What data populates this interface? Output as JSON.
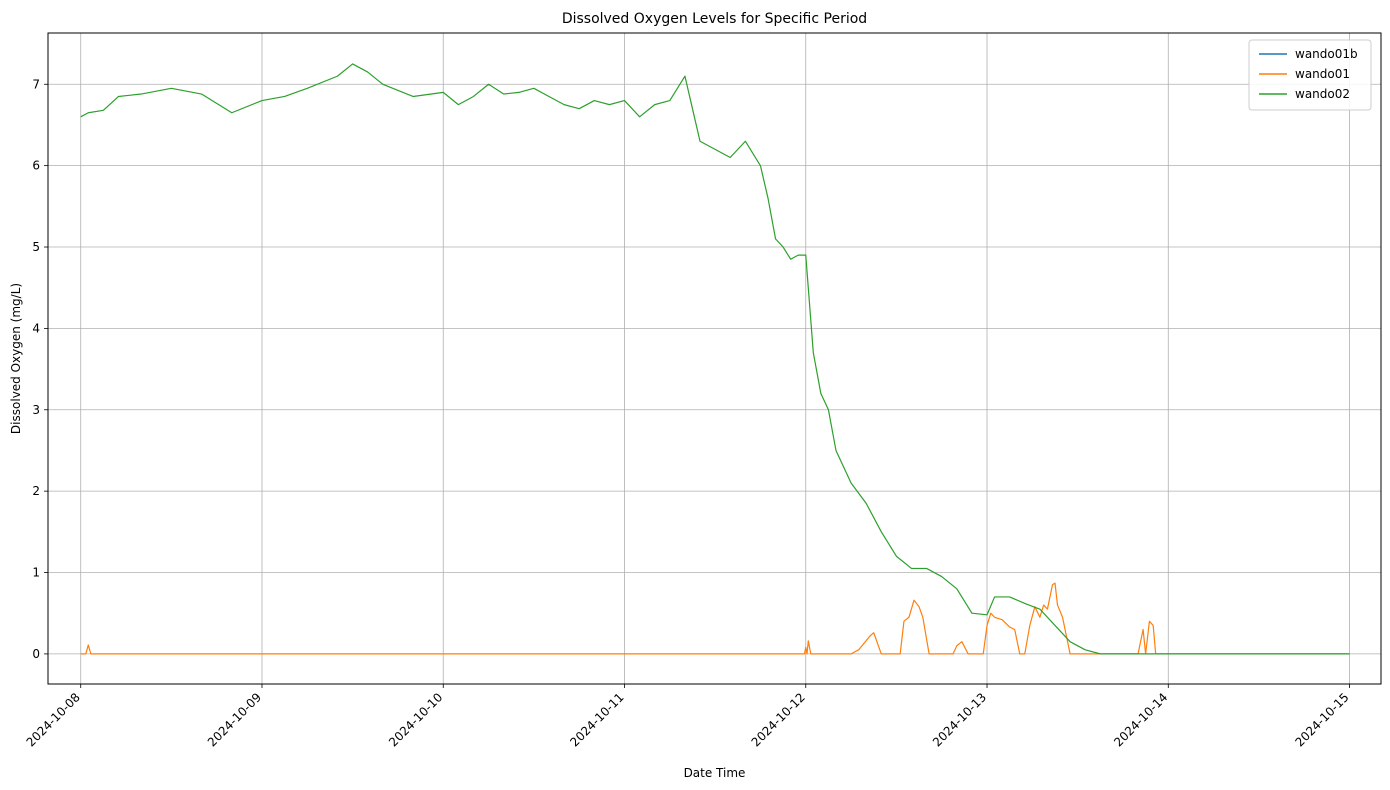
{
  "chart_data": {
    "type": "line",
    "title": "Dissolved Oxygen Levels for Specific Period",
    "xlabel": "Date Time",
    "ylabel": "Dissolved Oxygen (mg/L)",
    "x_axis_type": "date",
    "xlim": [
      "2024-10-07T19:40",
      "2024-10-15T04:10"
    ],
    "ylim": [
      -0.37,
      7.63
    ],
    "xticks": [
      "2024-10-08",
      "2024-10-09",
      "2024-10-10",
      "2024-10-11",
      "2024-10-12",
      "2024-10-13",
      "2024-10-14",
      "2024-10-15"
    ],
    "yticks": [
      0,
      1,
      2,
      3,
      4,
      5,
      6,
      7
    ],
    "grid": true,
    "legend_position": "top-right",
    "series": [
      {
        "name": "wando01b",
        "color": "#1f77b4",
        "points": []
      },
      {
        "name": "wando01",
        "color": "#ff7f0e",
        "points": [
          [
            "2024-10-08T00:00",
            0
          ],
          [
            "2024-10-08T00:40",
            0
          ],
          [
            "2024-10-08T01:00",
            0.11
          ],
          [
            "2024-10-08T01:20",
            0
          ],
          [
            "2024-10-08T12:00",
            0
          ],
          [
            "2024-10-09T00:00",
            0
          ],
          [
            "2024-10-10T00:00",
            0
          ],
          [
            "2024-10-11T00:00",
            0
          ],
          [
            "2024-10-11T23:50",
            0
          ],
          [
            "2024-10-12T00:00",
            0.08
          ],
          [
            "2024-10-12T00:10",
            0
          ],
          [
            "2024-10-12T00:20",
            0.16
          ],
          [
            "2024-10-12T00:40",
            0
          ],
          [
            "2024-10-12T06:00",
            0
          ],
          [
            "2024-10-12T07:00",
            0.05
          ],
          [
            "2024-10-12T08:30",
            0.22
          ],
          [
            "2024-10-12T09:00",
            0.26
          ],
          [
            "2024-10-12T10:00",
            0
          ],
          [
            "2024-10-12T12:30",
            0
          ],
          [
            "2024-10-12T13:00",
            0.4
          ],
          [
            "2024-10-12T13:40",
            0.45
          ],
          [
            "2024-10-12T14:20",
            0.66
          ],
          [
            "2024-10-12T15:00",
            0.58
          ],
          [
            "2024-10-12T15:30",
            0.45
          ],
          [
            "2024-10-12T16:20",
            0
          ],
          [
            "2024-10-12T19:30",
            0
          ],
          [
            "2024-10-12T20:00",
            0.1
          ],
          [
            "2024-10-12T20:40",
            0.15
          ],
          [
            "2024-10-12T21:30",
            0
          ],
          [
            "2024-10-12T23:30",
            0
          ],
          [
            "2024-10-13T00:00",
            0.35
          ],
          [
            "2024-10-13T00:30",
            0.5
          ],
          [
            "2024-10-13T01:00",
            0.45
          ],
          [
            "2024-10-13T02:00",
            0.42
          ],
          [
            "2024-10-13T03:00",
            0.33
          ],
          [
            "2024-10-13T03:40",
            0.3
          ],
          [
            "2024-10-13T04:20",
            0
          ],
          [
            "2024-10-13T05:00",
            0
          ],
          [
            "2024-10-13T05:40",
            0.35
          ],
          [
            "2024-10-13T06:20",
            0.58
          ],
          [
            "2024-10-13T07:00",
            0.45
          ],
          [
            "2024-10-13T07:30",
            0.6
          ],
          [
            "2024-10-13T08:00",
            0.55
          ],
          [
            "2024-10-13T08:40",
            0.85
          ],
          [
            "2024-10-13T09:00",
            0.87
          ],
          [
            "2024-10-13T09:20",
            0.6
          ],
          [
            "2024-10-13T10:00",
            0.45
          ],
          [
            "2024-10-13T11:00",
            0
          ],
          [
            "2024-10-13T20:00",
            0
          ],
          [
            "2024-10-13T20:40",
            0.3
          ],
          [
            "2024-10-13T21:00",
            0
          ],
          [
            "2024-10-13T21:30",
            0.4
          ],
          [
            "2024-10-13T22:00",
            0.35
          ],
          [
            "2024-10-13T22:20",
            0
          ],
          [
            "2024-10-14T00:00",
            0
          ],
          [
            "2024-10-15T00:00",
            0
          ]
        ]
      },
      {
        "name": "wando02",
        "color": "#2ca02c",
        "points": [
          [
            "2024-10-08T00:00",
            6.6
          ],
          [
            "2024-10-08T01:00",
            6.65
          ],
          [
            "2024-10-08T03:00",
            6.68
          ],
          [
            "2024-10-08T05:00",
            6.85
          ],
          [
            "2024-10-08T08:00",
            6.88
          ],
          [
            "2024-10-08T12:00",
            6.95
          ],
          [
            "2024-10-08T16:00",
            6.88
          ],
          [
            "2024-10-08T20:00",
            6.65
          ],
          [
            "2024-10-09T00:00",
            6.8
          ],
          [
            "2024-10-09T03:00",
            6.85
          ],
          [
            "2024-10-09T06:00",
            6.95
          ],
          [
            "2024-10-09T10:00",
            7.1
          ],
          [
            "2024-10-09T12:00",
            7.25
          ],
          [
            "2024-10-09T14:00",
            7.15
          ],
          [
            "2024-10-09T16:00",
            7.0
          ],
          [
            "2024-10-09T20:00",
            6.85
          ],
          [
            "2024-10-10T00:00",
            6.9
          ],
          [
            "2024-10-10T02:00",
            6.75
          ],
          [
            "2024-10-10T04:00",
            6.85
          ],
          [
            "2024-10-10T06:00",
            7.0
          ],
          [
            "2024-10-10T08:00",
            6.88
          ],
          [
            "2024-10-10T10:00",
            6.9
          ],
          [
            "2024-10-10T12:00",
            6.95
          ],
          [
            "2024-10-10T14:00",
            6.85
          ],
          [
            "2024-10-10T16:00",
            6.75
          ],
          [
            "2024-10-10T18:00",
            6.7
          ],
          [
            "2024-10-10T20:00",
            6.8
          ],
          [
            "2024-10-10T22:00",
            6.75
          ],
          [
            "2024-10-11T00:00",
            6.8
          ],
          [
            "2024-10-11T02:00",
            6.6
          ],
          [
            "2024-10-11T04:00",
            6.75
          ],
          [
            "2024-10-11T06:00",
            6.8
          ],
          [
            "2024-10-11T08:00",
            7.1
          ],
          [
            "2024-10-11T09:00",
            6.7
          ],
          [
            "2024-10-11T10:00",
            6.3
          ],
          [
            "2024-10-11T12:00",
            6.2
          ],
          [
            "2024-10-11T14:00",
            6.1
          ],
          [
            "2024-10-11T16:00",
            6.3
          ],
          [
            "2024-10-11T18:00",
            6.0
          ],
          [
            "2024-10-11T19:00",
            5.6
          ],
          [
            "2024-10-11T20:00",
            5.1
          ],
          [
            "2024-10-11T21:00",
            5.0
          ],
          [
            "2024-10-11T22:00",
            4.85
          ],
          [
            "2024-10-11T23:00",
            4.9
          ],
          [
            "2024-10-12T00:00",
            4.9
          ],
          [
            "2024-10-12T00:30",
            4.3
          ],
          [
            "2024-10-12T01:00",
            3.7
          ],
          [
            "2024-10-12T02:00",
            3.2
          ],
          [
            "2024-10-12T03:00",
            3.0
          ],
          [
            "2024-10-12T04:00",
            2.5
          ],
          [
            "2024-10-12T06:00",
            2.1
          ],
          [
            "2024-10-12T08:00",
            1.85
          ],
          [
            "2024-10-12T10:00",
            1.5
          ],
          [
            "2024-10-12T12:00",
            1.2
          ],
          [
            "2024-10-12T14:00",
            1.05
          ],
          [
            "2024-10-12T16:00",
            1.05
          ],
          [
            "2024-10-12T18:00",
            0.95
          ],
          [
            "2024-10-12T20:00",
            0.8
          ],
          [
            "2024-10-12T22:00",
            0.5
          ],
          [
            "2024-10-13T00:00",
            0.48
          ],
          [
            "2024-10-13T01:00",
            0.7
          ],
          [
            "2024-10-13T03:00",
            0.7
          ],
          [
            "2024-10-13T05:00",
            0.62
          ],
          [
            "2024-10-13T07:00",
            0.55
          ],
          [
            "2024-10-13T09:00",
            0.35
          ],
          [
            "2024-10-13T11:00",
            0.15
          ],
          [
            "2024-10-13T13:00",
            0.05
          ],
          [
            "2024-10-13T15:00",
            0
          ],
          [
            "2024-10-14T00:00",
            0
          ],
          [
            "2024-10-15T00:00",
            0
          ]
        ]
      }
    ]
  }
}
